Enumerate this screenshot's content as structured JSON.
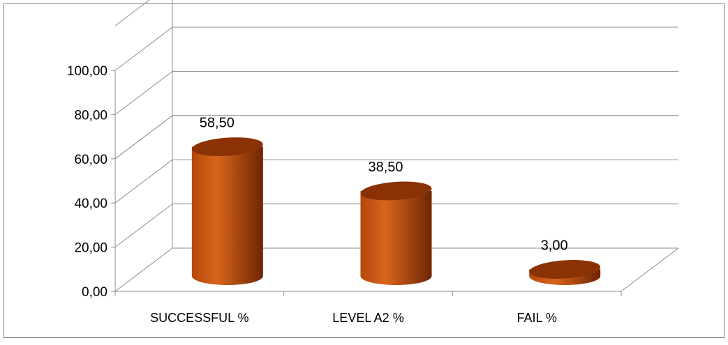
{
  "chart_data": {
    "type": "bar",
    "shape": "cylinder-3d",
    "categories": [
      "SUCCESSFUL %",
      "LEVEL A2 %",
      "FAIL %"
    ],
    "values": [
      58.5,
      38.5,
      3.0
    ],
    "value_labels": [
      "58,50",
      "38,50",
      "3,00"
    ],
    "y_ticks": [
      "0,00",
      "20,00",
      "40,00",
      "60,00",
      "80,00",
      "100,00"
    ],
    "ylim": [
      0,
      100
    ],
    "title": "",
    "xlabel": "",
    "ylabel": "",
    "grid": true,
    "legend": "none",
    "colors": {
      "bar_light": "#d9651c",
      "bar_mid": "#b3470a",
      "bar_dark": "#6e2503",
      "bar_top": "#8a3204",
      "grid": "#8c8c8c",
      "border": "#7f7f7f"
    }
  }
}
